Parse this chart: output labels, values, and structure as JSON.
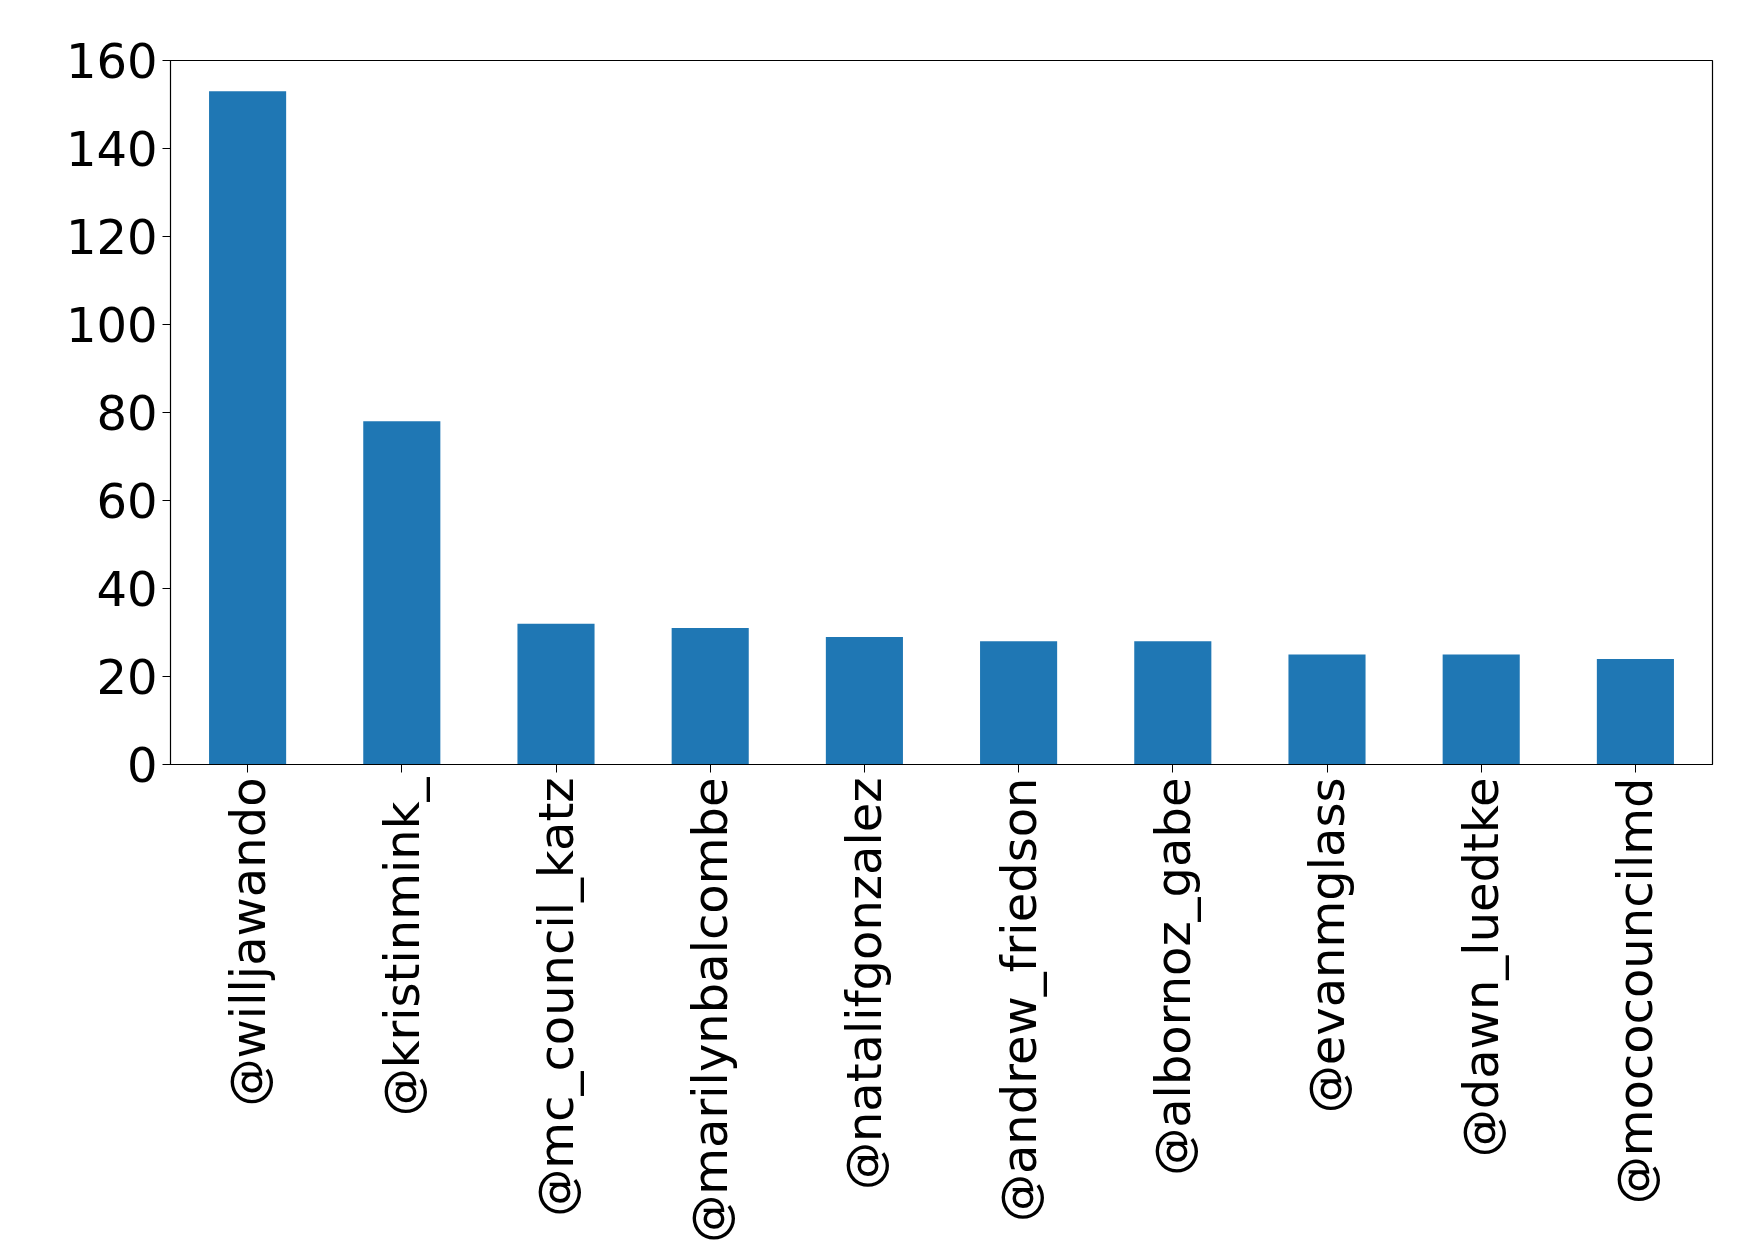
{
  "chart_data": {
    "type": "bar",
    "categories": [
      "@willjawando",
      "@kristinmink_",
      "@mc_council_katz",
      "@marilynbalcombe",
      "@natalifgonzalez",
      "@andrew_friedson",
      "@albornoz_gabe",
      "@evanmglass",
      "@dawn_luedtke",
      "@mococouncilmd"
    ],
    "values": [
      153,
      78,
      32,
      31,
      29,
      28,
      28,
      25,
      25,
      24
    ],
    "color": "#1f77b4",
    "ylim": [
      0,
      160
    ],
    "yticks": [
      0,
      20,
      40,
      60,
      80,
      100,
      120,
      140,
      160
    ],
    "grid": false
  }
}
